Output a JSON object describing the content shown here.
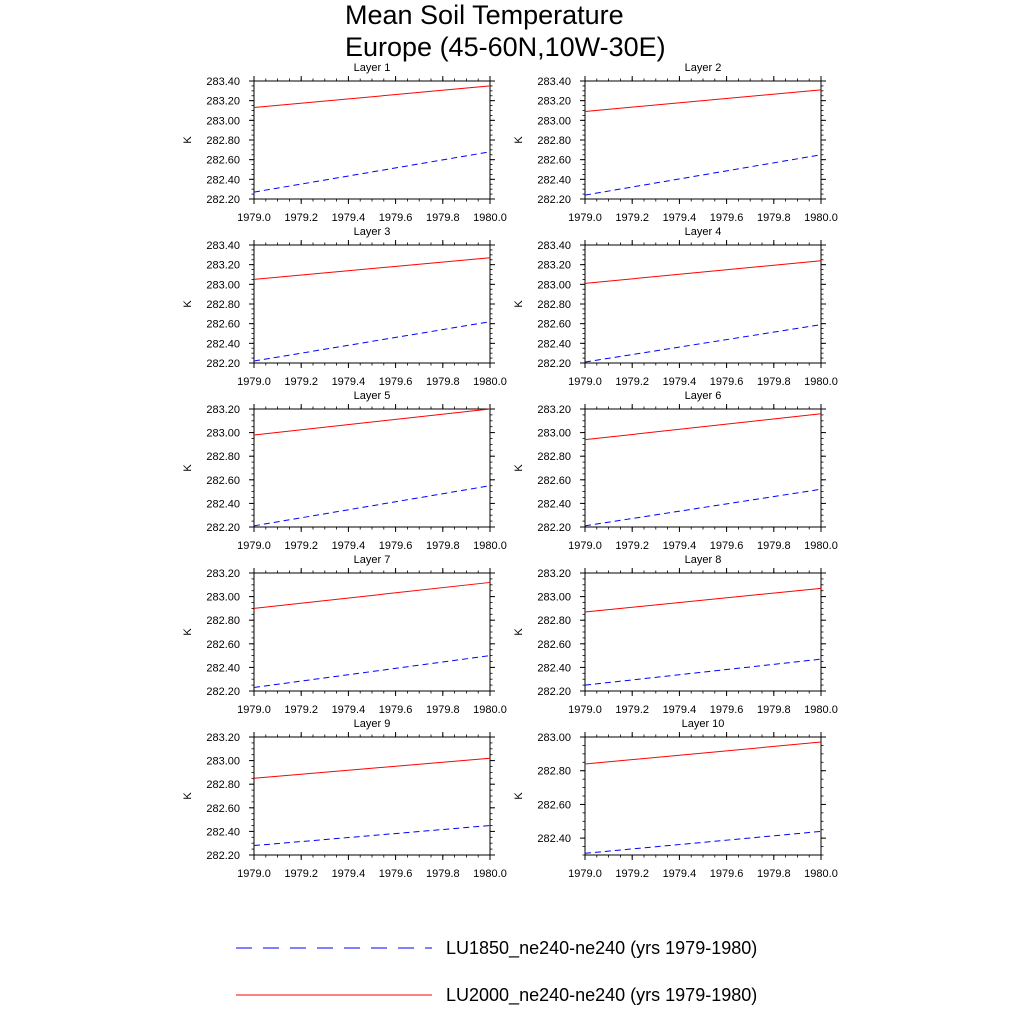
{
  "title_lines": [
    "Mean Soil Temperature",
    "Europe (45-60N,10W-30E)"
  ],
  "colors": {
    "LU1850": "#0000ff",
    "LU2000": "#ff0000",
    "axis": "#000000"
  },
  "chart_data": [
    {
      "type": "line",
      "title": "Layer 1",
      "xlabel": "",
      "ylabel": "K",
      "xlim": [
        1979.0,
        1980.0
      ],
      "ylim": [
        282.2,
        283.4
      ],
      "x_ticks": [
        "1979.0",
        "1979.2",
        "1979.4",
        "1979.6",
        "1979.8",
        "1980.0"
      ],
      "y_ticks": [
        "282.20",
        "282.40",
        "282.60",
        "282.80",
        "283.00",
        "283.20",
        "283.40"
      ],
      "x": [
        1979.0,
        1980.0
      ],
      "series": [
        {
          "name": "LU1850_ne240-ne240 (yrs 1979-1980)",
          "style": "dashed",
          "color": "#0000ff",
          "values": [
            282.27,
            282.68
          ]
        },
        {
          "name": "LU2000_ne240-ne240 (yrs 1979-1980)",
          "style": "solid",
          "color": "#ff0000",
          "values": [
            283.13,
            283.35
          ]
        }
      ]
    },
    {
      "type": "line",
      "title": "Layer 2",
      "xlabel": "",
      "ylabel": "K",
      "xlim": [
        1979.0,
        1980.0
      ],
      "ylim": [
        282.2,
        283.4
      ],
      "x_ticks": [
        "1979.0",
        "1979.2",
        "1979.4",
        "1979.6",
        "1979.8",
        "1980.0"
      ],
      "y_ticks": [
        "282.20",
        "282.40",
        "282.60",
        "282.80",
        "283.00",
        "283.20",
        "283.40"
      ],
      "x": [
        1979.0,
        1980.0
      ],
      "series": [
        {
          "name": "LU1850_ne240-ne240 (yrs 1979-1980)",
          "style": "dashed",
          "color": "#0000ff",
          "values": [
            282.24,
            282.65
          ]
        },
        {
          "name": "LU2000_ne240-ne240 (yrs 1979-1980)",
          "style": "solid",
          "color": "#ff0000",
          "values": [
            283.09,
            283.31
          ]
        }
      ]
    },
    {
      "type": "line",
      "title": "Layer 3",
      "xlabel": "",
      "ylabel": "K",
      "xlim": [
        1979.0,
        1980.0
      ],
      "ylim": [
        282.2,
        283.4
      ],
      "x_ticks": [
        "1979.0",
        "1979.2",
        "1979.4",
        "1979.6",
        "1979.8",
        "1980.0"
      ],
      "y_ticks": [
        "282.20",
        "282.40",
        "282.60",
        "282.80",
        "283.00",
        "283.20",
        "283.40"
      ],
      "x": [
        1979.0,
        1980.0
      ],
      "series": [
        {
          "name": "LU1850_ne240-ne240 (yrs 1979-1980)",
          "style": "dashed",
          "color": "#0000ff",
          "values": [
            282.22,
            282.62
          ]
        },
        {
          "name": "LU2000_ne240-ne240 (yrs 1979-1980)",
          "style": "solid",
          "color": "#ff0000",
          "values": [
            283.05,
            283.27
          ]
        }
      ]
    },
    {
      "type": "line",
      "title": "Layer 4",
      "xlabel": "",
      "ylabel": "K",
      "xlim": [
        1979.0,
        1980.0
      ],
      "ylim": [
        282.2,
        283.4
      ],
      "x_ticks": [
        "1979.0",
        "1979.2",
        "1979.4",
        "1979.6",
        "1979.8",
        "1980.0"
      ],
      "y_ticks": [
        "282.20",
        "282.40",
        "282.60",
        "282.80",
        "283.00",
        "283.20",
        "283.40"
      ],
      "x": [
        1979.0,
        1980.0
      ],
      "series": [
        {
          "name": "LU1850_ne240-ne240 (yrs 1979-1980)",
          "style": "dashed",
          "color": "#0000ff",
          "values": [
            282.21,
            282.59
          ]
        },
        {
          "name": "LU2000_ne240-ne240 (yrs 1979-1980)",
          "style": "solid",
          "color": "#ff0000",
          "values": [
            283.01,
            283.24
          ]
        }
      ]
    },
    {
      "type": "line",
      "title": "Layer 5",
      "xlabel": "",
      "ylabel": "K",
      "xlim": [
        1979.0,
        1980.0
      ],
      "ylim": [
        282.2,
        283.2
      ],
      "x_ticks": [
        "1979.0",
        "1979.2",
        "1979.4",
        "1979.6",
        "1979.8",
        "1980.0"
      ],
      "y_ticks": [
        "282.20",
        "282.40",
        "282.60",
        "282.80",
        "283.00",
        "283.20"
      ],
      "x": [
        1979.0,
        1980.0
      ],
      "series": [
        {
          "name": "LU1850_ne240-ne240 (yrs 1979-1980)",
          "style": "dashed",
          "color": "#0000ff",
          "values": [
            282.21,
            282.55
          ]
        },
        {
          "name": "LU2000_ne240-ne240 (yrs 1979-1980)",
          "style": "solid",
          "color": "#ff0000",
          "values": [
            282.98,
            283.2
          ]
        }
      ]
    },
    {
      "type": "line",
      "title": "Layer 6",
      "xlabel": "",
      "ylabel": "K",
      "xlim": [
        1979.0,
        1980.0
      ],
      "ylim": [
        282.2,
        283.2
      ],
      "x_ticks": [
        "1979.0",
        "1979.2",
        "1979.4",
        "1979.6",
        "1979.8",
        "1980.0"
      ],
      "y_ticks": [
        "282.20",
        "282.40",
        "282.60",
        "282.80",
        "283.00",
        "283.20"
      ],
      "x": [
        1979.0,
        1980.0
      ],
      "series": [
        {
          "name": "LU1850_ne240-ne240 (yrs 1979-1980)",
          "style": "dashed",
          "color": "#0000ff",
          "values": [
            282.21,
            282.52
          ]
        },
        {
          "name": "LU2000_ne240-ne240 (yrs 1979-1980)",
          "style": "solid",
          "color": "#ff0000",
          "values": [
            282.94,
            283.16
          ]
        }
      ]
    },
    {
      "type": "line",
      "title": "Layer 7",
      "xlabel": "",
      "ylabel": "K",
      "xlim": [
        1979.0,
        1980.0
      ],
      "ylim": [
        282.2,
        283.2
      ],
      "x_ticks": [
        "1979.0",
        "1979.2",
        "1979.4",
        "1979.6",
        "1979.8",
        "1980.0"
      ],
      "y_ticks": [
        "282.20",
        "282.40",
        "282.60",
        "282.80",
        "283.00",
        "283.20"
      ],
      "x": [
        1979.0,
        1980.0
      ],
      "series": [
        {
          "name": "LU1850_ne240-ne240 (yrs 1979-1980)",
          "style": "dashed",
          "color": "#0000ff",
          "values": [
            282.23,
            282.5
          ]
        },
        {
          "name": "LU2000_ne240-ne240 (yrs 1979-1980)",
          "style": "solid",
          "color": "#ff0000",
          "values": [
            282.9,
            283.12
          ]
        }
      ]
    },
    {
      "type": "line",
      "title": "Layer 8",
      "xlabel": "",
      "ylabel": "K",
      "xlim": [
        1979.0,
        1980.0
      ],
      "ylim": [
        282.2,
        283.2
      ],
      "x_ticks": [
        "1979.0",
        "1979.2",
        "1979.4",
        "1979.6",
        "1979.8",
        "1980.0"
      ],
      "y_ticks": [
        "282.20",
        "282.40",
        "282.60",
        "282.80",
        "283.00",
        "283.20"
      ],
      "x": [
        1979.0,
        1980.0
      ],
      "series": [
        {
          "name": "LU1850_ne240-ne240 (yrs 1979-1980)",
          "style": "dashed",
          "color": "#0000ff",
          "values": [
            282.25,
            282.47
          ]
        },
        {
          "name": "LU2000_ne240-ne240 (yrs 1979-1980)",
          "style": "solid",
          "color": "#ff0000",
          "values": [
            282.87,
            283.07
          ]
        }
      ]
    },
    {
      "type": "line",
      "title": "Layer 9",
      "xlabel": "",
      "ylabel": "K",
      "xlim": [
        1979.0,
        1980.0
      ],
      "ylim": [
        282.2,
        283.2
      ],
      "x_ticks": [
        "1979.0",
        "1979.2",
        "1979.4",
        "1979.6",
        "1979.8",
        "1980.0"
      ],
      "y_ticks": [
        "282.20",
        "282.40",
        "282.60",
        "282.80",
        "283.00",
        "283.20"
      ],
      "x": [
        1979.0,
        1980.0
      ],
      "series": [
        {
          "name": "LU1850_ne240-ne240 (yrs 1979-1980)",
          "style": "dashed",
          "color": "#0000ff",
          "values": [
            282.28,
            282.45
          ]
        },
        {
          "name": "LU2000_ne240-ne240 (yrs 1979-1980)",
          "style": "solid",
          "color": "#ff0000",
          "values": [
            282.85,
            283.02
          ]
        }
      ]
    },
    {
      "type": "line",
      "title": "Layer 10",
      "xlabel": "",
      "ylabel": "K",
      "xlim": [
        1979.0,
        1980.0
      ],
      "ylim": [
        282.3,
        283.0
      ],
      "x_ticks": [
        "1979.0",
        "1979.2",
        "1979.4",
        "1979.6",
        "1979.8",
        "1980.0"
      ],
      "y_ticks": [
        "282.40",
        "282.60",
        "282.80",
        "283.00"
      ],
      "x": [
        1979.0,
        1980.0
      ],
      "series": [
        {
          "name": "LU1850_ne240-ne240 (yrs 1979-1980)",
          "style": "dashed",
          "color": "#0000ff",
          "values": [
            282.31,
            282.44
          ]
        },
        {
          "name": "LU2000_ne240-ne240 (yrs 1979-1980)",
          "style": "solid",
          "color": "#ff0000",
          "values": [
            282.84,
            282.97
          ]
        }
      ]
    }
  ],
  "legend": {
    "placement": "bottom-center",
    "items": [
      {
        "label": "LU1850_ne240-ne240 (yrs 1979-1980)",
        "style": "dashed",
        "color": "#0000ff"
      },
      {
        "label": "LU2000_ne240-ne240 (yrs 1979-1980)",
        "style": "solid",
        "color": "#ff0000"
      }
    ]
  }
}
